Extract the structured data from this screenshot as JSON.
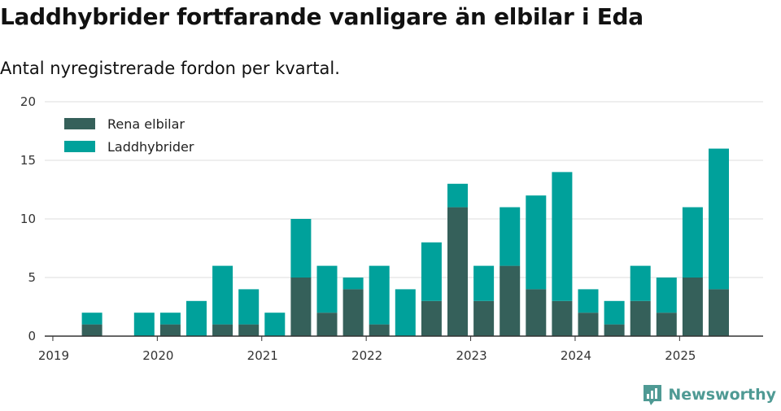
{
  "title": "Laddhybrider fortfarande vanligare än elbilar i Eda",
  "subtitle": "Antal nyregistrerade fordon per kvartal.",
  "brand": "Newsworthy",
  "colors": {
    "ev": "#35605a",
    "phev": "#00a19b",
    "grid": "#dddddd",
    "axis": "#333333",
    "brand": "#4f9a94"
  },
  "chart_data": {
    "type": "bar",
    "stacked": true,
    "categories": [
      "2019 Q1",
      "2019 Q2",
      "2019 Q3",
      "2019 Q4",
      "2020 Q1",
      "2020 Q2",
      "2020 Q3",
      "2020 Q4",
      "2021 Q1",
      "2021 Q2",
      "2021 Q3",
      "2021 Q4",
      "2022 Q1",
      "2022 Q2",
      "2022 Q3",
      "2022 Q4",
      "2023 Q1",
      "2023 Q2",
      "2023 Q3",
      "2023 Q4",
      "2024 Q1",
      "2024 Q2",
      "2024 Q3",
      "2024 Q4",
      "2025 Q1",
      "2025 Q2"
    ],
    "series": [
      {
        "name": "Rena elbilar",
        "values": [
          0,
          1,
          0,
          0,
          1,
          0,
          1,
          1,
          0,
          5,
          2,
          4,
          1,
          0,
          3,
          11,
          3,
          6,
          4,
          3,
          2,
          1,
          3,
          2,
          5,
          4
        ]
      },
      {
        "name": "Laddhybrider",
        "values": [
          0,
          1,
          0,
          2,
          1,
          3,
          5,
          3,
          2,
          5,
          4,
          1,
          5,
          4,
          5,
          2,
          3,
          5,
          8,
          11,
          2,
          2,
          3,
          3,
          6,
          12
        ]
      }
    ],
    "x_tick_labels": [
      "2019",
      "2020",
      "2021",
      "2022",
      "2023",
      "2024",
      "2025"
    ],
    "y_ticks": [
      0,
      5,
      10,
      15,
      20
    ],
    "ylim": [
      0,
      20
    ],
    "grid": "horizontal",
    "legend_position": "top-left"
  }
}
